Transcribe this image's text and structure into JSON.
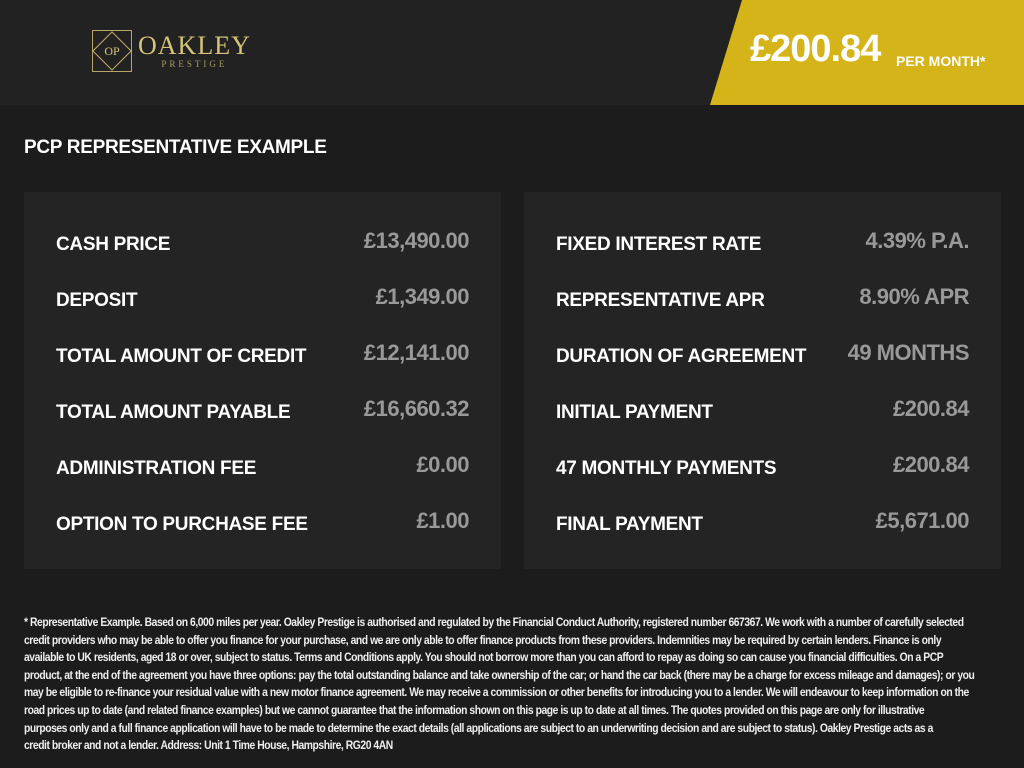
{
  "header": {
    "logo": {
      "monogram": "OP",
      "name": "OAKLEY",
      "sub": "PRESTIGE"
    },
    "price": "£200.84",
    "per_month": "PER MONTH*",
    "accent": "#d4b418"
  },
  "title": "PCP REPRESENTATIVE EXAMPLE",
  "left": [
    {
      "label": "CASH PRICE",
      "value": "£13,490.00"
    },
    {
      "label": "DEPOSIT",
      "value": "£1,349.00"
    },
    {
      "label": "TOTAL AMOUNT OF CREDIT",
      "value": "£12,141.00"
    },
    {
      "label": "TOTAL AMOUNT PAYABLE",
      "value": "£16,660.32"
    },
    {
      "label": "ADMINISTRATION FEE",
      "value": "£0.00"
    },
    {
      "label": "OPTION TO PURCHASE FEE",
      "value": "£1.00"
    }
  ],
  "right": [
    {
      "label": "FIXED INTEREST RATE",
      "value": "4.39% P.A."
    },
    {
      "label": "REPRESENTATIVE APR",
      "value": "8.90% APR"
    },
    {
      "label": "DURATION OF AGREEMENT",
      "value": "49 MONTHS"
    },
    {
      "label": "INITIAL PAYMENT",
      "value": "£200.84"
    },
    {
      "label": "47 MONTHLY PAYMENTS",
      "value": "£200.84"
    },
    {
      "label": "FINAL PAYMENT",
      "value": "£5,671.00"
    }
  ],
  "disclaimer": [
    "* Representative Example. Based on 6,000 miles per year. Oakley Prestige is authorised and regulated by the Financial Conduct Authority, registered number 667367. We work with a number of carefully selected",
    "credit providers who may be able to offer you finance for your purchase, and we are only able to offer finance products from these providers. Indemnities may be required by certain lenders. Finance is only",
    "available to UK residents, aged 18 or over, subject to status. Terms and Conditions apply. You should not borrow more than you can afford to repay as doing so can cause you financial difficulties. On a PCP",
    "product, at the end of the agreement you have three options: pay the total outstanding balance and take ownership of the car; or hand the car back (there may be a charge for excess mileage and damages); or you",
    "may be eligible to re-finance your residual value with a new motor finance agreement. We may receive a commission or other benefits for introducing you to a lender. We will endeavour to keep information on the",
    "road prices up to date (and related finance examples) but we cannot guarantee that the information shown on this page is up to date at all times. The quotes provided on this page are only for illustrative",
    "purposes only and a full finance application will have to be made to determine the exact details (all applications are subject to an underwriting decision and are subject to status). Oakley Prestige acts as a",
    "credit broker and not a lender. Address: Unit 1 Time House, Hampshire, RG20 4AN"
  ]
}
